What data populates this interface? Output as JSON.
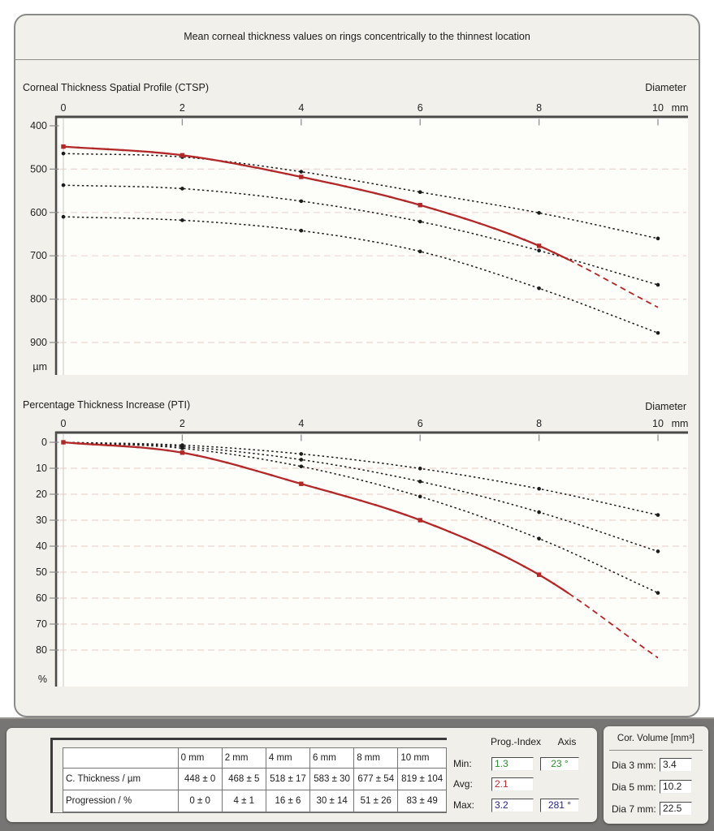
{
  "header": {
    "title": "Mean corneal thickness values on rings concentrically to the thinnest location"
  },
  "charts": {
    "ctsp": {
      "title": "Corneal Thickness Spatial Profile (CTSP)",
      "corner_label": "Diameter"
    },
    "pti": {
      "title": "Percentage Thickness Increase (PTI)",
      "corner_label": "Diameter"
    }
  },
  "chart_data": [
    {
      "id": "ctsp",
      "type": "line",
      "title": "Corneal Thickness Spatial Profile (CTSP)",
      "xlabel": "Diameter",
      "x_unit": "mm",
      "ylabel": "µm",
      "y_axis_inverted": true,
      "x_ticks": [
        0,
        2,
        4,
        6,
        8,
        10
      ],
      "y_ticks": [
        400,
        500,
        600,
        700,
        800,
        900
      ],
      "grid_ticks": [
        500,
        600,
        700,
        800,
        900
      ],
      "ylim": [
        400,
        975
      ],
      "x": [
        0,
        2,
        4,
        6,
        8,
        10
      ],
      "series": [
        {
          "name": "norm-minus-2sd",
          "color": "#1b1b1b",
          "line": "dashed",
          "values": [
            464,
            472,
            506,
            553,
            601,
            660
          ]
        },
        {
          "name": "norm-mean",
          "color": "#1b1b1b",
          "line": "dashed",
          "values": [
            537,
            545,
            574,
            621,
            688,
            767
          ]
        },
        {
          "name": "norm-plus-2sd",
          "color": "#1b1b1b",
          "line": "dashed",
          "values": [
            610,
            618,
            642,
            690,
            775,
            878
          ]
        },
        {
          "name": "patient-thickness",
          "color": "#b22828",
          "line": "solid",
          "dash_from_x": 8.5,
          "values": [
            448,
            468,
            518,
            583,
            677,
            819
          ]
        }
      ]
    },
    {
      "id": "pti",
      "type": "line",
      "title": "Percentage Thickness Increase (PTI)",
      "xlabel": "Diameter",
      "x_unit": "mm",
      "ylabel": "%",
      "y_axis_inverted": true,
      "x_ticks": [
        0,
        2,
        4,
        6,
        8,
        10
      ],
      "y_ticks": [
        0,
        10,
        20,
        30,
        40,
        50,
        60,
        70,
        80
      ],
      "grid_ticks": [
        10,
        20,
        30,
        40,
        50,
        60,
        70,
        80
      ],
      "ylim": [
        0,
        94
      ],
      "x": [
        0,
        2,
        4,
        6,
        8,
        10
      ],
      "series": [
        {
          "name": "norm-minus-2sd",
          "color": "#1b1b1b",
          "line": "dashed",
          "values": [
            0,
            1.1,
            4.5,
            10.1,
            17.9,
            28
          ]
        },
        {
          "name": "norm-mean",
          "color": "#1b1b1b",
          "line": "dashed",
          "values": [
            0,
            1.7,
            6.7,
            15.1,
            26.9,
            42
          ]
        },
        {
          "name": "norm-plus-2sd",
          "color": "#1b1b1b",
          "line": "dashed",
          "values": [
            0,
            2.3,
            9.3,
            20.9,
            37.1,
            58
          ]
        },
        {
          "name": "patient-progression",
          "color": "#b22828",
          "line": "solid",
          "dash_from_x": 8.5,
          "values": [
            0,
            4,
            16,
            30,
            51,
            83
          ]
        }
      ]
    }
  ],
  "table": {
    "columns": [
      "",
      "0 mm",
      "2 mm",
      "4 mm",
      "6 mm",
      "8 mm",
      "10 mm"
    ],
    "rows": [
      {
        "label": "C. Thickness / µm",
        "values": [
          "448 ± 0",
          "468 ± 5",
          "518 ± 17",
          "583 ± 30",
          "677 ± 54",
          "819 ± 104"
        ]
      },
      {
        "label": "Progression / %",
        "values": [
          "0 ± 0",
          "4 ± 1",
          "16 ± 6",
          "30 ± 14",
          "51 ± 26",
          "83 ± 49"
        ]
      }
    ]
  },
  "prog_index": {
    "value_header": "Prog.-Index",
    "axis_header": "Axis",
    "rows": [
      {
        "label": "Min:",
        "value": "1.3",
        "axis": "23 °",
        "color": "#2f8a2f"
      },
      {
        "label": "Avg:",
        "value": "2.1",
        "axis": "",
        "color": "#b02e2e"
      },
      {
        "label": "Max:",
        "value": "3.2",
        "axis": "281 °",
        "color": "#24247c"
      }
    ]
  },
  "cor_volume": {
    "title": "Cor. Volume [mm³]",
    "rows": [
      {
        "label": "Dia 3 mm:",
        "value": "3.4"
      },
      {
        "label": "Dia 5 mm:",
        "value": "10.2"
      },
      {
        "label": "Dia 7 mm:",
        "value": "22.5"
      }
    ]
  },
  "colors": {
    "accent_red": "#b22828",
    "norm_black": "#1b1b1b",
    "grid_pink": "#eed6d2",
    "panel_bg": "#f2f0ea",
    "band_gray": "#767573",
    "min_green": "#2f8a2f",
    "avg_red": "#b02e2e",
    "max_navy": "#24247c"
  }
}
